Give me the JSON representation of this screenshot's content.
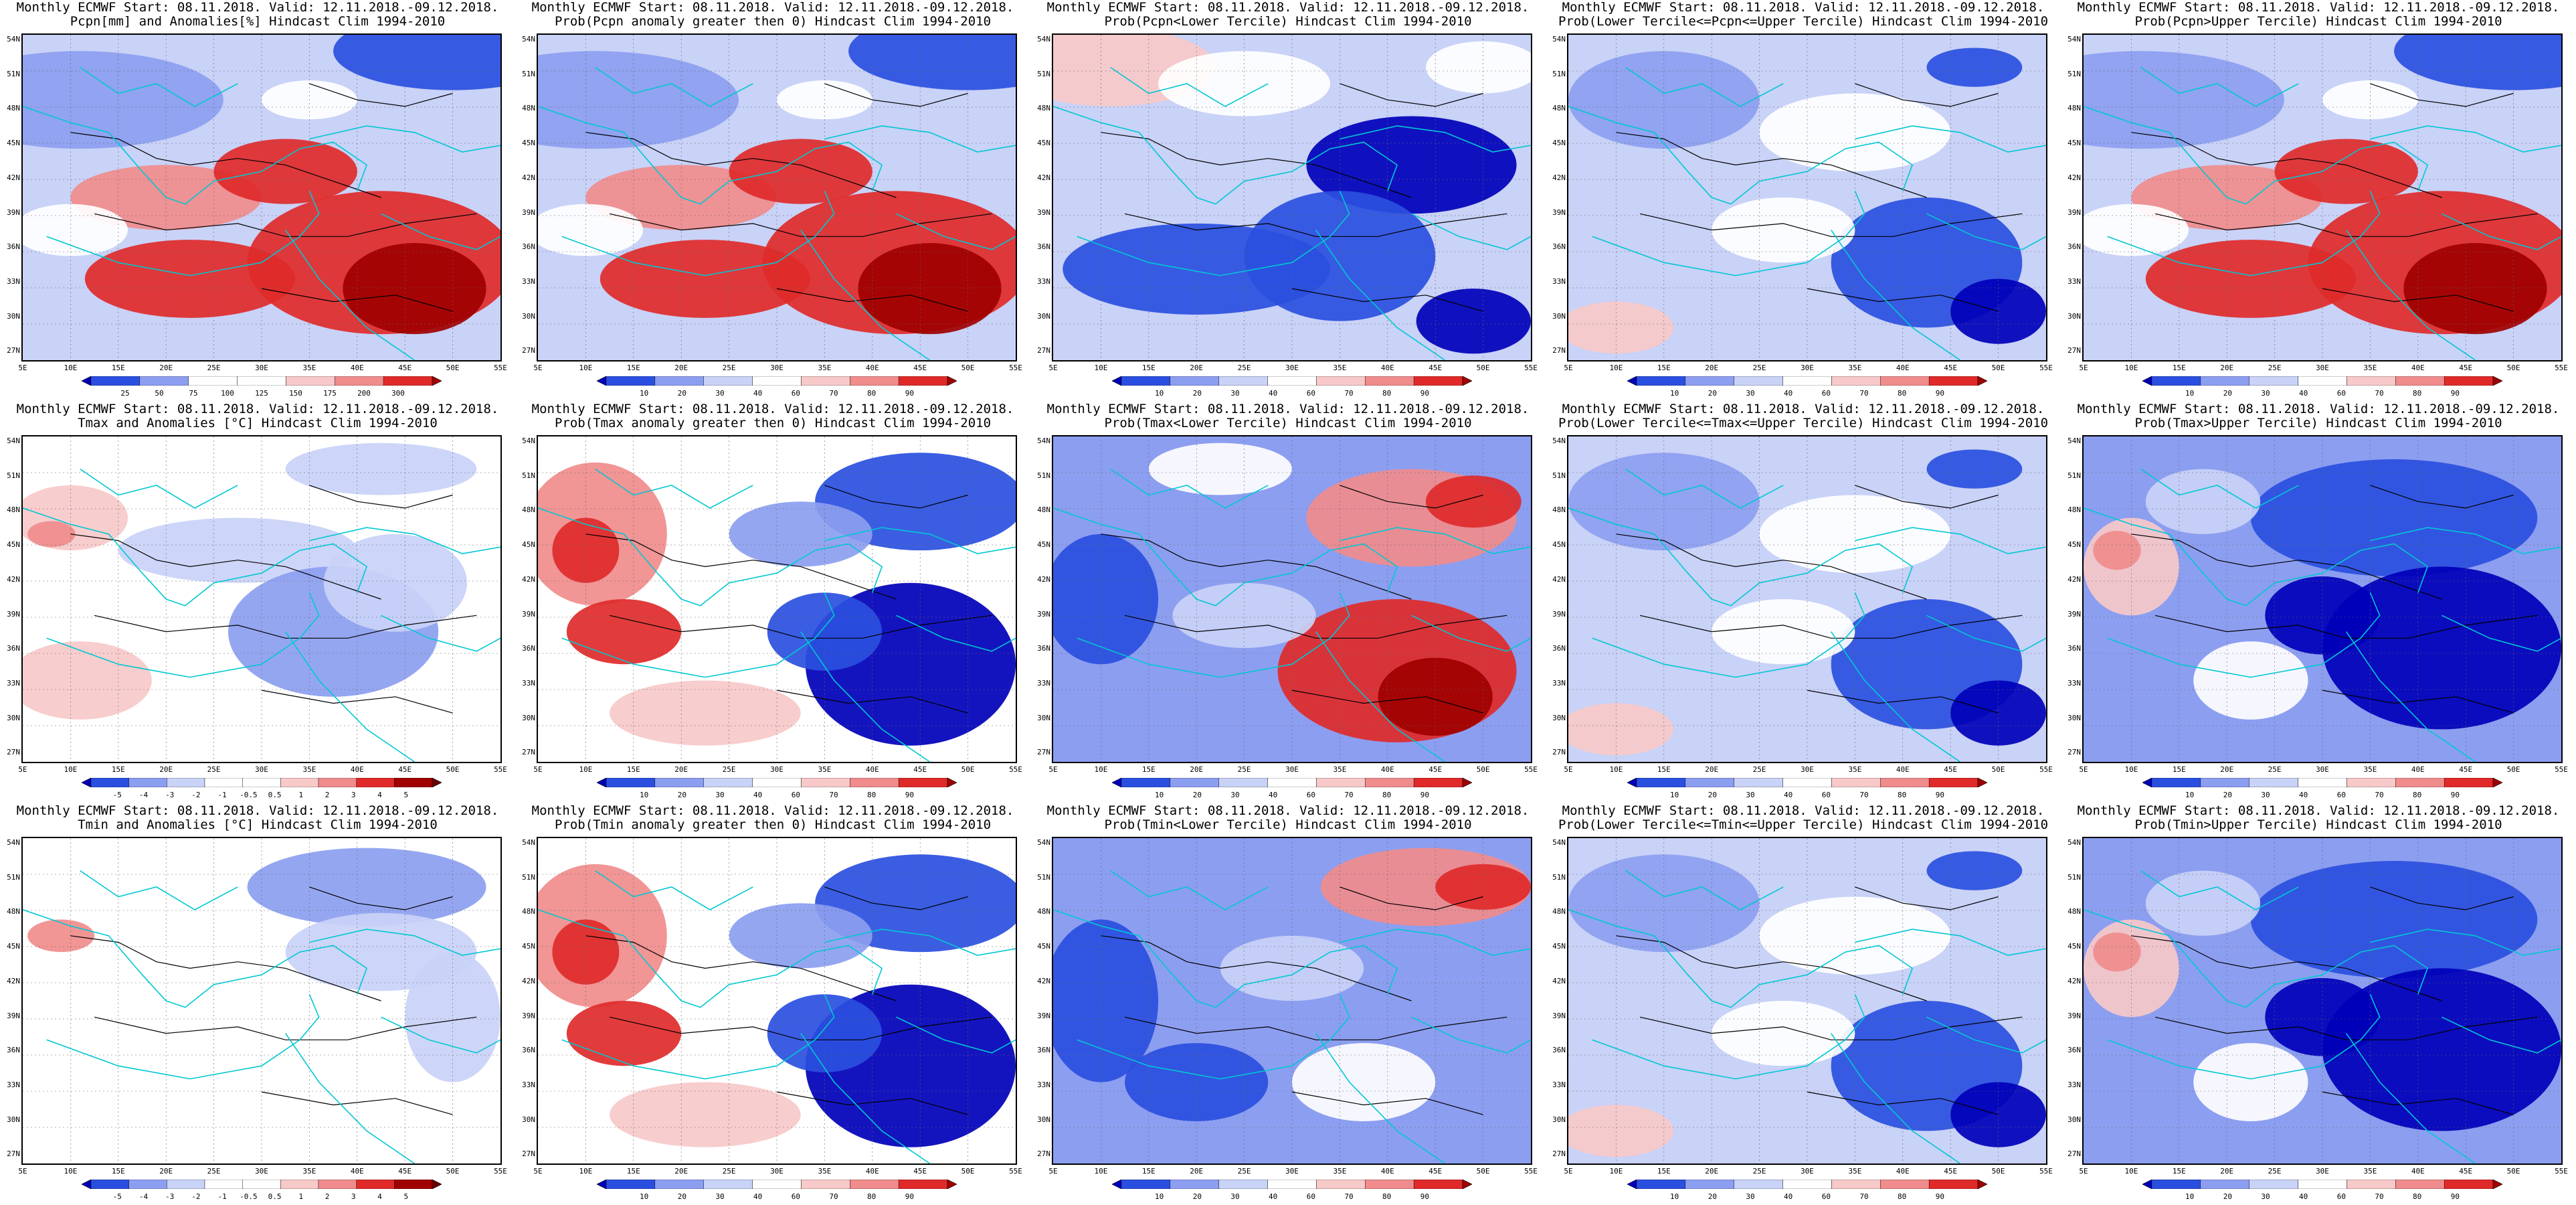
{
  "lat_labels": [
    "54N",
    "51N",
    "48N",
    "45N",
    "42N",
    "39N",
    "36N",
    "33N",
    "30N",
    "27N"
  ],
  "lon_labels": [
    "5E",
    "10E",
    "15E",
    "20E",
    "25E",
    "30E",
    "35E",
    "40E",
    "45E",
    "50E",
    "55E"
  ],
  "colors": {
    "blue_dark": "#0000b8",
    "blue_mid": "#2a4fe0",
    "blue_light": "#8c9ef0",
    "blue_pale": "#c9d2f7",
    "white": "#ffffff",
    "red_pale": "#f7c9c9",
    "red_light": "#f08c8c",
    "red_mid": "#e02a2a",
    "red_dark": "#a00000",
    "coast": "#00c8d2",
    "contour": "#000000"
  },
  "panels": [
    {
      "line1": "Monthly ECMWF Start: 08.11.2018. Valid: 12.11.2018.-09.12.2018.",
      "line2": "Pcpn[mm] and Anomalies[%] Hindcast Clim 1994-2010",
      "colorbar": [
        "25",
        "50",
        "75",
        "100",
        "125",
        "150",
        "175",
        "200",
        "300"
      ],
      "pattern": "precip_anom"
    },
    {
      "line1": "Monthly ECMWF Start: 08.11.2018. Valid: 12.11.2018.-09.12.2018.",
      "line2": "Prob(Pcpn anomaly greater then 0) Hindcast Clim 1994-2010",
      "colorbar": [
        "10",
        "20",
        "30",
        "40",
        "60",
        "70",
        "80",
        "90"
      ],
      "pattern": "precip_anom"
    },
    {
      "line1": "Monthly ECMWF Start: 08.11.2018. Valid: 12.11.2018.-09.12.2018.",
      "line2": "Prob(Pcpn<Lower Tercile) Hindcast Clim 1994-2010",
      "colorbar": [
        "10",
        "20",
        "30",
        "40",
        "60",
        "70",
        "80",
        "90"
      ],
      "pattern": "precip_lower"
    },
    {
      "line1": "Monthly ECMWF Start: 08.11.2018. Valid: 12.11.2018.-09.12.2018.",
      "line2": "Prob(Lower Tercile<=Pcpn<=Upper Tercile) Hindcast Clim 1994-2010",
      "colorbar": [
        "10",
        "20",
        "30",
        "40",
        "60",
        "70",
        "80",
        "90"
      ],
      "pattern": "middle"
    },
    {
      "line1": "Monthly ECMWF Start: 08.11.2018. Valid: 12.11.2018.-09.12.2018.",
      "line2": "Prob(Pcpn>Upper Tercile) Hindcast Clim 1994-2010",
      "colorbar": [
        "10",
        "20",
        "30",
        "40",
        "60",
        "70",
        "80",
        "90"
      ],
      "pattern": "precip_anom"
    },
    {
      "line1": "Monthly ECMWF Start: 08.11.2018. Valid: 12.11.2018.-09.12.2018.",
      "line2": "Tmax and Anomalies [°C] Hindcast Clim 1994-2010",
      "colorbar": [
        "-5",
        "-4",
        "-3",
        "-2",
        "-1",
        "-0.5",
        "0.5",
        "1",
        "2",
        "3",
        "4",
        "5"
      ],
      "pattern": "temp_anom"
    },
    {
      "line1": "Monthly ECMWF Start: 08.11.2018. Valid: 12.11.2018.-09.12.2018.",
      "line2": "Prob(Tmax anomaly greater then 0) Hindcast Clim 1994-2010",
      "colorbar": [
        "10",
        "20",
        "30",
        "40",
        "60",
        "70",
        "80",
        "90"
      ],
      "pattern": "temp_west_warm"
    },
    {
      "line1": "Monthly ECMWF Start: 08.11.2018. Valid: 12.11.2018.-09.12.2018.",
      "line2": "Prob(Tmax<Lower Tercile) Hindcast Clim 1994-2010",
      "colorbar": [
        "10",
        "20",
        "30",
        "40",
        "60",
        "70",
        "80",
        "90"
      ],
      "pattern": "temp_lower"
    },
    {
      "line1": "Monthly ECMWF Start: 08.11.2018. Valid: 12.11.2018.-09.12.2018.",
      "line2": "Prob(Lower Tercile<=Tmax<=Upper Tercile) Hindcast Clim 1994-2010",
      "colorbar": [
        "10",
        "20",
        "30",
        "40",
        "60",
        "70",
        "80",
        "90"
      ],
      "pattern": "middle"
    },
    {
      "line1": "Monthly ECMWF Start: 08.11.2018. Valid: 12.11.2018.-09.12.2018.",
      "line2": "Prob(Tmax>Upper Tercile) Hindcast Clim 1994-2010",
      "colorbar": [
        "10",
        "20",
        "30",
        "40",
        "60",
        "70",
        "80",
        "90"
      ],
      "pattern": "temp_upper"
    },
    {
      "line1": "Monthly ECMWF Start: 08.11.2018. Valid: 12.11.2018.-09.12.2018.",
      "line2": "Tmin and Anomalies [°C] Hindcast Clim 1994-2010",
      "colorbar": [
        "-5",
        "-4",
        "-3",
        "-2",
        "-1",
        "-0.5",
        "0.5",
        "1",
        "2",
        "3",
        "4",
        "5"
      ],
      "pattern": "tmin_anom"
    },
    {
      "line1": "Monthly ECMWF Start: 08.11.2018. Valid: 12.11.2018.-09.12.2018.",
      "line2": "Prob(Tmin anomaly greater then 0) Hindcast Clim 1994-2010",
      "colorbar": [
        "10",
        "20",
        "30",
        "40",
        "60",
        "70",
        "80",
        "90"
      ],
      "pattern": "temp_west_warm"
    },
    {
      "line1": "Monthly ECMWF Start: 08.11.2018. Valid: 12.11.2018.-09.12.2018.",
      "line2": "Prob(Tmin<Lower Tercile) Hindcast Clim 1994-2010",
      "colorbar": [
        "10",
        "20",
        "30",
        "40",
        "60",
        "70",
        "80",
        "90"
      ],
      "pattern": "tmin_lower"
    },
    {
      "line1": "Monthly ECMWF Start: 08.11.2018. Valid: 12.11.2018.-09.12.2018.",
      "line2": "Prob(Lower Tercile<=Tmin<=Upper Tercile) Hindcast Clim 1994-2010",
      "colorbar": [
        "10",
        "20",
        "30",
        "40",
        "60",
        "70",
        "80",
        "90"
      ],
      "pattern": "middle"
    },
    {
      "line1": "Monthly ECMWF Start: 08.11.2018. Valid: 12.11.2018.-09.12.2018.",
      "line2": "Prob(Tmin>Upper Tercile) Hindcast Clim 1994-2010",
      "colorbar": [
        "10",
        "20",
        "30",
        "40",
        "60",
        "70",
        "80",
        "90"
      ],
      "pattern": "temp_upper"
    }
  ]
}
